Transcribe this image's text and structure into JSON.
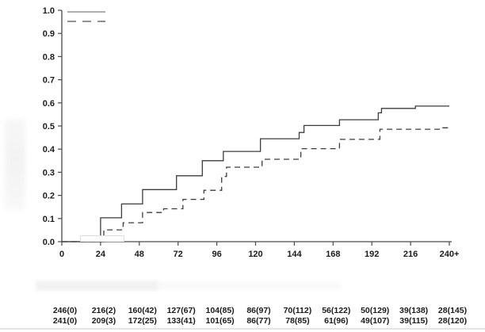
{
  "page": {
    "background": "#ffffff"
  },
  "colors": {
    "axis": "#4a4a4a",
    "text": "#1b1b1b",
    "series_solid": "#3d3d3d",
    "series_dashed": "#3d3d3d",
    "legend_solid": "#949494",
    "legend_dashed": "#6e6e6e"
  },
  "chart_data": {
    "type": "line",
    "subtype": "step-survival",
    "title": "",
    "xlabel": "",
    "ylabel": "",
    "grid": false,
    "xlim": [
      0,
      240
    ],
    "ylim": [
      0.0,
      1.0
    ],
    "x_ticks": [
      "0",
      "24",
      "48",
      "72",
      "96",
      "120",
      "144",
      "168",
      "192",
      "216",
      "240+"
    ],
    "x_tick_values": [
      0,
      24,
      48,
      72,
      96,
      120,
      144,
      168,
      192,
      216,
      240
    ],
    "y_ticks": [
      "0.0",
      "0.1",
      "0.2",
      "0.3",
      "0.4",
      "0.5",
      "0.6",
      "0.7",
      "0.8",
      "0.9",
      "1.0"
    ],
    "y_tick_values": [
      0,
      0.1,
      0.2,
      0.3,
      0.4,
      0.5,
      0.6,
      0.7,
      0.8,
      0.9,
      1.0
    ],
    "legend": {
      "position": "top-left",
      "entries": [
        {
          "name": "series-1",
          "style": "solid"
        },
        {
          "name": "series-2",
          "style": "dashed"
        }
      ]
    },
    "series": [
      {
        "name": "series-1-solid",
        "style": "solid",
        "step_points": [
          [
            0,
            0
          ],
          [
            24,
            0
          ],
          [
            24,
            0.103
          ],
          [
            37,
            0.103
          ],
          [
            37,
            0.163
          ],
          [
            50,
            0.163
          ],
          [
            50,
            0.225
          ],
          [
            71,
            0.225
          ],
          [
            71,
            0.285
          ],
          [
            87,
            0.285
          ],
          [
            87,
            0.35
          ],
          [
            100,
            0.35
          ],
          [
            100,
            0.39
          ],
          [
            123,
            0.39
          ],
          [
            123,
            0.445
          ],
          [
            147,
            0.445
          ],
          [
            147,
            0.472
          ],
          [
            150,
            0.472
          ],
          [
            150,
            0.502
          ],
          [
            172,
            0.502
          ],
          [
            172,
            0.527
          ],
          [
            196,
            0.527
          ],
          [
            196,
            0.557
          ],
          [
            198,
            0.557
          ],
          [
            198,
            0.576
          ],
          [
            219,
            0.576
          ],
          [
            219,
            0.586
          ],
          [
            240,
            0.586
          ]
        ]
      },
      {
        "name": "series-2-dashed",
        "style": "dashed",
        "step_points": [
          [
            0,
            0
          ],
          [
            26,
            0
          ],
          [
            26,
            0.051
          ],
          [
            38,
            0.051
          ],
          [
            38,
            0.082
          ],
          [
            50,
            0.082
          ],
          [
            50,
            0.126
          ],
          [
            63,
            0.126
          ],
          [
            63,
            0.142
          ],
          [
            75,
            0.142
          ],
          [
            75,
            0.183
          ],
          [
            88,
            0.183
          ],
          [
            88,
            0.222
          ],
          [
            99,
            0.222
          ],
          [
            99,
            0.282
          ],
          [
            102,
            0.282
          ],
          [
            102,
            0.322
          ],
          [
            124,
            0.322
          ],
          [
            124,
            0.356
          ],
          [
            148,
            0.356
          ],
          [
            148,
            0.402
          ],
          [
            172,
            0.402
          ],
          [
            172,
            0.442
          ],
          [
            197,
            0.442
          ],
          [
            197,
            0.486
          ],
          [
            236,
            0.486
          ],
          [
            236,
            0.492
          ],
          [
            240,
            0.492
          ]
        ]
      }
    ]
  },
  "risk_table": {
    "rows": [
      {
        "name": "row-1",
        "values": [
          "246(0)",
          "216(2)",
          "160(42)",
          "127(67)",
          "104(85)",
          "86(97)",
          "70(112)",
          "56(122)",
          "50(129)",
          "39(138)",
          "28(145)"
        ]
      },
      {
        "name": "row-2",
        "values": [
          "241(0)",
          "209(3)",
          "172(25)",
          "133(41)",
          "101(65)",
          "86(77)",
          "78(85)",
          "61(96)",
          "49(107)",
          "39(115)",
          "28(120)"
        ]
      }
    ]
  }
}
